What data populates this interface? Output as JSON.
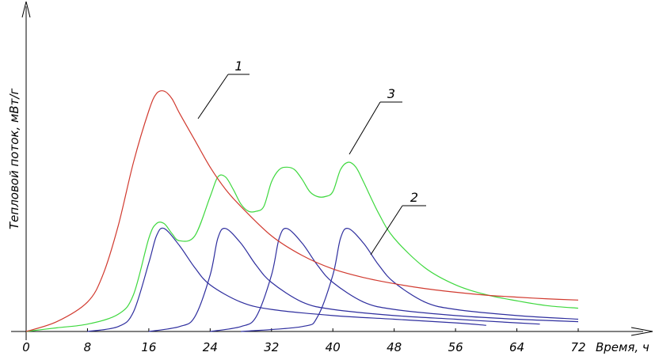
{
  "chart_data": {
    "type": "line",
    "xlabel": "Время, ч",
    "ylabel": "Тепловой поток, мВт/г",
    "xlim": [
      0,
      72
    ],
    "ylim": [
      0,
      1
    ],
    "x_ticks": [
      0,
      8,
      16,
      24,
      32,
      40,
      48,
      56,
      64,
      72
    ],
    "x_tick_labels": [
      "0",
      "8",
      "16",
      "24",
      "32",
      "40",
      "48",
      "56",
      "64",
      "72"
    ],
    "grid": false,
    "legend": "none",
    "series": [
      {
        "label": "1",
        "color": "#d13a2f",
        "x": [
          0,
          4,
          8,
          10,
          12,
          14,
          16,
          17,
          18,
          19,
          20,
          22,
          24,
          26,
          28,
          32,
          36,
          40,
          44,
          48,
          52,
          56,
          60,
          64,
          68,
          72
        ],
        "y": [
          0,
          0.04,
          0.12,
          0.23,
          0.43,
          0.69,
          0.9,
          0.97,
          0.98,
          0.95,
          0.89,
          0.78,
          0.67,
          0.58,
          0.51,
          0.39,
          0.31,
          0.255,
          0.22,
          0.195,
          0.175,
          0.16,
          0.148,
          0.14,
          0.133,
          0.128
        ]
      },
      {
        "label": "2",
        "color": "#2e2e9e",
        "x": [
          8,
          12,
          14,
          16,
          17,
          18,
          20,
          22,
          24,
          28,
          32,
          40,
          48,
          56,
          60
        ],
        "y": [
          0,
          0.02,
          0.08,
          0.28,
          0.39,
          0.42,
          0.35,
          0.26,
          0.19,
          0.12,
          0.09,
          0.065,
          0.05,
          0.035,
          0.025
        ]
      },
      {
        "label": "2",
        "color": "#2e2e9e",
        "x": [
          16,
          20,
          22,
          24,
          25,
          26,
          28,
          30,
          32,
          36,
          40,
          48,
          56,
          64,
          67
        ],
        "y": [
          0,
          0.02,
          0.06,
          0.23,
          0.38,
          0.42,
          0.36,
          0.27,
          0.2,
          0.12,
          0.09,
          0.065,
          0.05,
          0.035,
          0.03
        ]
      },
      {
        "label": "2",
        "color": "#2e2e9e",
        "x": [
          24,
          28,
          30,
          32,
          33,
          34,
          36,
          38,
          40,
          44,
          48,
          56,
          64,
          72
        ],
        "y": [
          0,
          0.02,
          0.06,
          0.23,
          0.38,
          0.42,
          0.36,
          0.27,
          0.2,
          0.12,
          0.09,
          0.065,
          0.05,
          0.04
        ]
      },
      {
        "label": "2",
        "color": "#2e2e9e",
        "x": [
          28,
          36,
          38,
          40,
          41,
          42,
          44,
          46,
          48,
          52,
          56,
          64,
          72
        ],
        "y": [
          0,
          0.02,
          0.06,
          0.23,
          0.38,
          0.42,
          0.36,
          0.27,
          0.2,
          0.12,
          0.09,
          0.065,
          0.05
        ]
      },
      {
        "label": "3",
        "color": "#3ed83e",
        "x": [
          0,
          4,
          8,
          12,
          14,
          16,
          17,
          18,
          19,
          20,
          22,
          24,
          25,
          26,
          27,
          28,
          29,
          30,
          31,
          32,
          33,
          34,
          35,
          36,
          37,
          38,
          39,
          40,
          41,
          42,
          43,
          44,
          46,
          48,
          52,
          56,
          60,
          64,
          68,
          72
        ],
        "y": [
          0,
          0.015,
          0.03,
          0.07,
          0.15,
          0.38,
          0.44,
          0.44,
          0.4,
          0.37,
          0.39,
          0.55,
          0.63,
          0.63,
          0.58,
          0.52,
          0.49,
          0.49,
          0.51,
          0.61,
          0.66,
          0.67,
          0.66,
          0.62,
          0.57,
          0.55,
          0.55,
          0.57,
          0.66,
          0.69,
          0.67,
          0.61,
          0.48,
          0.38,
          0.26,
          0.19,
          0.15,
          0.125,
          0.105,
          0.095
        ]
      }
    ]
  }
}
